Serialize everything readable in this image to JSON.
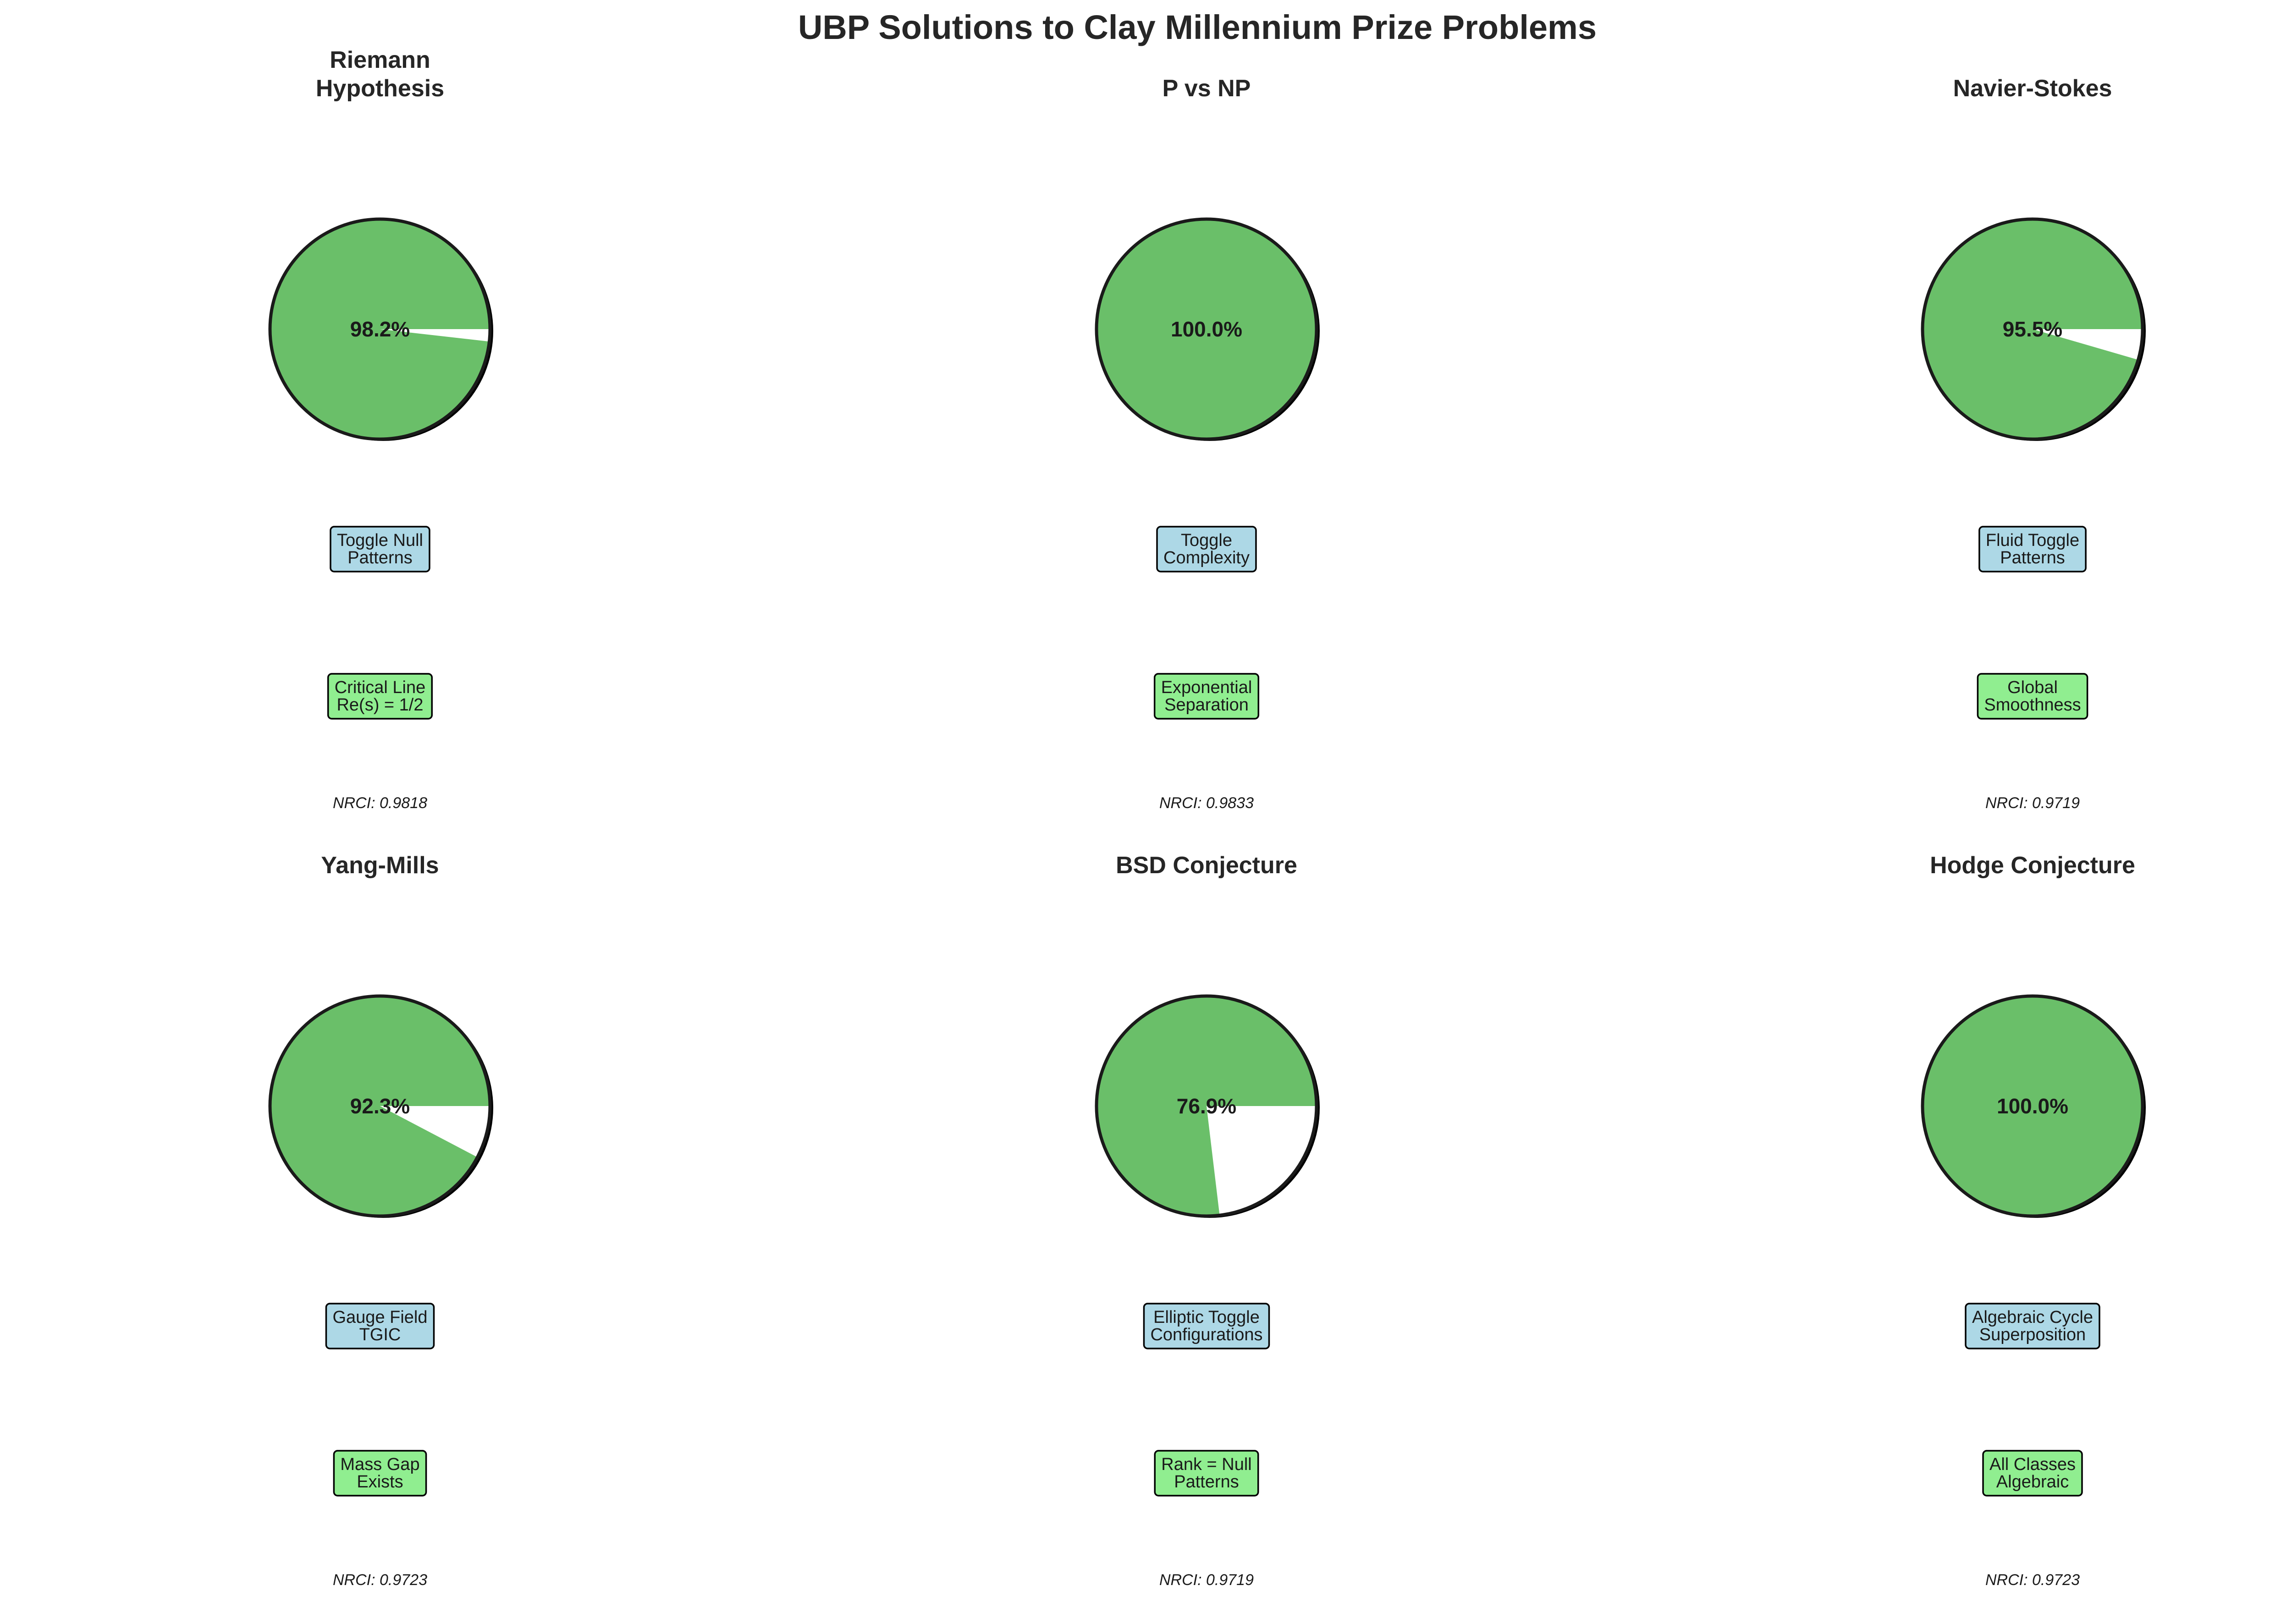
{
  "chart_data": {
    "type": "pie",
    "title": "UBP Solutions to Clay Millennium Prize Problems",
    "colors": {
      "filled": "#6abf69",
      "remainder": "#ffffff",
      "edge": "#000000",
      "method_box": "#add8e6",
      "result_box": "#90ee90",
      "text": "#262626"
    },
    "panels": [
      {
        "title_lines": [
          "Riemann",
          "Hypothesis"
        ],
        "value": 98.2,
        "label": "98.2%",
        "method_lines": [
          "Toggle Null",
          "Patterns"
        ],
        "result_lines": [
          "Critical Line",
          "Re(s) = 1/2"
        ],
        "nrci": "NRCI: 0.9818"
      },
      {
        "title_lines": [
          "P vs NP"
        ],
        "value": 100.0,
        "label": "100.0%",
        "method_lines": [
          "Toggle",
          "Complexity"
        ],
        "result_lines": [
          "Exponential",
          "Separation"
        ],
        "nrci": "NRCI: 0.9833"
      },
      {
        "title_lines": [
          "Navier-Stokes"
        ],
        "value": 95.5,
        "label": "95.5%",
        "method_lines": [
          "Fluid Toggle",
          "Patterns"
        ],
        "result_lines": [
          "Global",
          "Smoothness"
        ],
        "nrci": "NRCI: 0.9719"
      },
      {
        "title_lines": [
          "Yang-Mills"
        ],
        "value": 92.3,
        "label": "92.3%",
        "method_lines": [
          "Gauge Field",
          "TGIC"
        ],
        "result_lines": [
          "Mass Gap",
          "Exists"
        ],
        "nrci": "NRCI: 0.9723"
      },
      {
        "title_lines": [
          "BSD Conjecture"
        ],
        "value": 76.9,
        "label": "76.9%",
        "method_lines": [
          "Elliptic Toggle",
          "Configurations"
        ],
        "result_lines": [
          "Rank = Null",
          "Patterns"
        ],
        "nrci": "NRCI: 0.9719"
      },
      {
        "title_lines": [
          "Hodge Conjecture"
        ],
        "value": 100.0,
        "label": "100.0%",
        "method_lines": [
          "Algebraic Cycle",
          "Superposition"
        ],
        "result_lines": [
          "All Classes",
          "Algebraic"
        ],
        "nrci": "NRCI: 0.9723"
      }
    ]
  }
}
